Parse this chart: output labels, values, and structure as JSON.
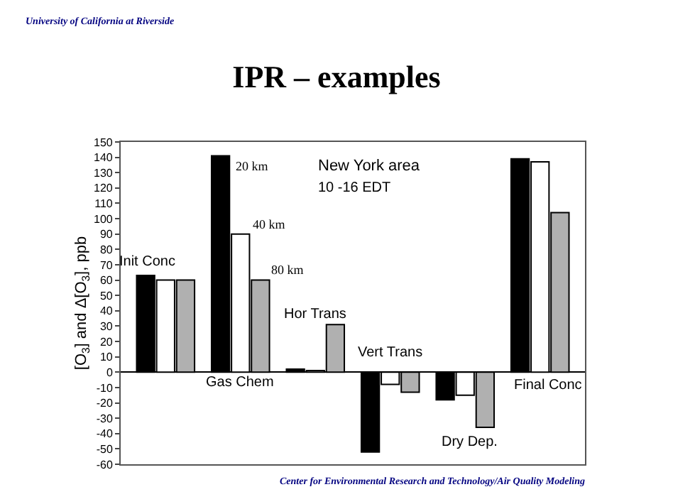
{
  "chart_data": {
    "type": "bar",
    "title": "IPR – examples",
    "ylabel": "[O$_{3}$] and Δ[O$_{3}$], ppb",
    "categories": [
      "Init Conc",
      "Gas Chem",
      "Hor Trans",
      "Vert Trans",
      "Dry Dep.",
      "Final Conc"
    ],
    "series": [
      {
        "name": "20 km",
        "color": "#000000",
        "values": [
          63,
          141,
          2,
          -52,
          -18,
          139
        ]
      },
      {
        "name": "40 km",
        "color": "#ffffff",
        "values": [
          60,
          90,
          1,
          -8,
          -15,
          137
        ]
      },
      {
        "name": "80 km",
        "color": "#b0b0b0",
        "values": [
          60,
          60,
          31,
          -13,
          -36,
          104
        ]
      }
    ],
    "ylim": [
      -60,
      150
    ],
    "yticks": [
      -60,
      -50,
      -40,
      -30,
      -20,
      -10,
      0,
      10,
      20,
      30,
      40,
      50,
      60,
      70,
      80,
      90,
      100,
      110,
      120,
      130,
      140,
      150
    ],
    "tick_labels": "y",
    "legend": false,
    "annotations": [
      "New York area",
      "10 -16 EDT",
      "University of California at Riverside",
      "Center for Environmental Research and Technology/Air Quality Modeling"
    ]
  }
}
